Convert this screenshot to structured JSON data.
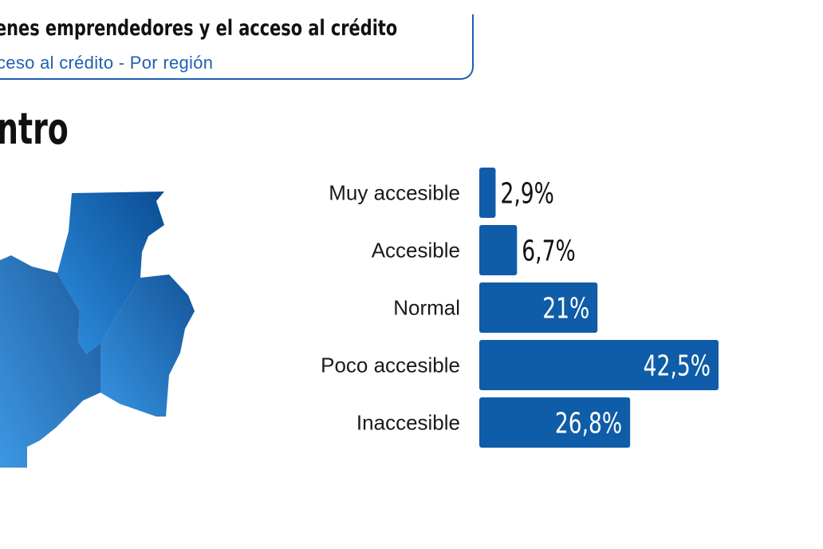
{
  "header": {
    "title": "enes emprendedores y el acceso al crédito",
    "subtitle": "ceso al crédito - Por región"
  },
  "region_label": "ntro",
  "colors": {
    "bar": "#0f5ca8",
    "accent": "#1f5fb3",
    "map_light": "#2f8fe0",
    "map_dark": "#0a4d94"
  },
  "chart_data": {
    "type": "bar",
    "orientation": "horizontal",
    "title": "",
    "categories": [
      "Muy accesible",
      "Accesible",
      "Normal",
      "Poco accesible",
      "Inaccesible"
    ],
    "values": [
      2.9,
      6.7,
      21,
      42.5,
      26.8
    ],
    "value_labels": [
      "2,9%",
      "6,7%",
      "21%",
      "42,5%",
      "26,8%"
    ],
    "xlim": [
      0,
      42.5
    ],
    "grid": false,
    "legend": "none"
  }
}
